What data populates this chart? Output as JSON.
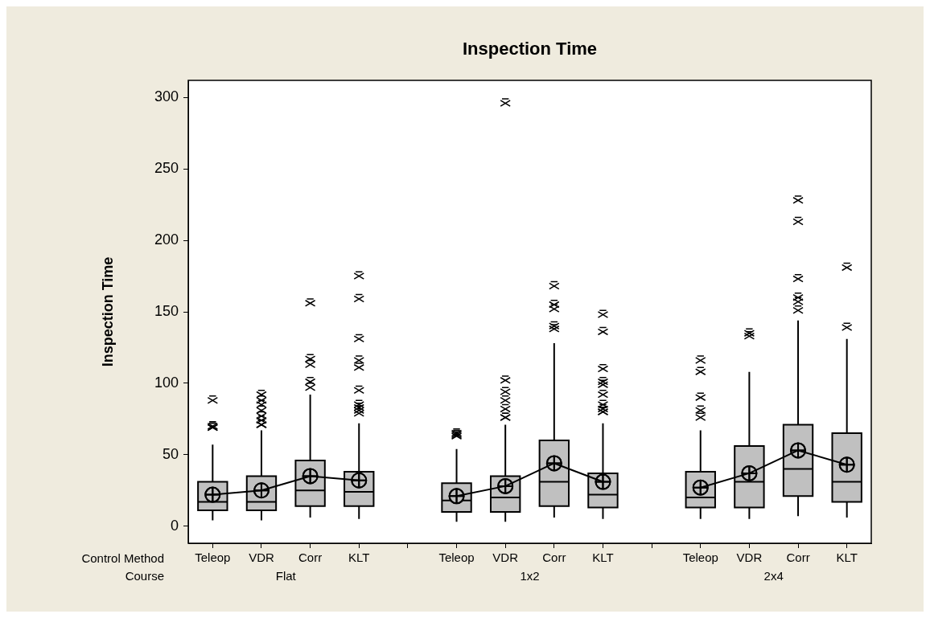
{
  "chart_data": {
    "type": "box",
    "title": "Inspection Time",
    "ylabel": "Inspection Time",
    "categories": [
      "Teleop",
      "VDR",
      "Corr",
      "KLT",
      null,
      "Teleop",
      "VDR",
      "Corr",
      "KLT",
      null,
      "Teleop",
      "VDR",
      "Corr",
      "KLT"
    ],
    "color": "#c0c0c0",
    "ylim": [
      -12,
      312
    ],
    "yticks": [
      0,
      50,
      100,
      150,
      200,
      250,
      300
    ],
    "grid": false,
    "legend": false,
    "boxes": [
      {
        "low": 4,
        "q1": 11,
        "median": 17,
        "q3": 31,
        "high": 57,
        "mean": 22,
        "outliers": [
          69,
          69,
          70,
          88
        ]
      },
      {
        "low": 4,
        "q1": 11,
        "median": 17,
        "q3": 35,
        "high": 67,
        "mean": 25,
        "outliers": [
          71,
          71,
          71,
          74,
          77,
          81,
          85,
          88,
          92
        ]
      },
      {
        "low": 6,
        "q1": 14,
        "median": 25,
        "q3": 46,
        "high": 92,
        "mean": 35,
        "outliers": [
          97,
          101,
          113,
          117,
          156
        ]
      },
      {
        "low": 5,
        "q1": 14,
        "median": 24,
        "q3": 38,
        "high": 72,
        "mean": 32,
        "outliers": [
          79,
          81,
          83,
          85,
          95,
          111,
          116,
          131,
          159,
          175
        ]
      },
      null,
      {
        "low": 3,
        "q1": 10,
        "median": 18,
        "q3": 30,
        "high": 54,
        "mean": 21,
        "outliers": [
          63,
          64,
          65
        ]
      },
      {
        "low": 3,
        "q1": 10,
        "median": 20,
        "q3": 35,
        "high": 71,
        "mean": 28,
        "outliers": [
          76,
          76,
          82,
          88,
          94,
          102,
          296
        ]
      },
      {
        "low": 6,
        "q1": 14,
        "median": 31,
        "q3": 60,
        "high": 128,
        "mean": 44,
        "outliers": [
          138,
          140,
          152,
          155,
          168
        ]
      },
      {
        "low": 5,
        "q1": 13,
        "median": 22,
        "q3": 37,
        "high": 72,
        "mean": 31,
        "outliers": [
          80,
          80,
          82,
          85,
          92,
          99,
          101,
          110,
          136,
          148
        ]
      },
      null,
      {
        "low": 5,
        "q1": 13,
        "median": 20,
        "q3": 38,
        "high": 67,
        "mean": 27,
        "outliers": [
          76,
          81,
          90,
          108,
          116
        ]
      },
      {
        "low": 5,
        "q1": 13,
        "median": 31,
        "q3": 56,
        "high": 108,
        "mean": 37,
        "outliers": [
          133,
          135
        ]
      },
      {
        "low": 7,
        "q1": 21,
        "median": 40,
        "q3": 71,
        "high": 144,
        "mean": 53,
        "outliers": [
          151,
          157,
          160,
          173,
          213,
          228
        ]
      },
      {
        "low": 6,
        "q1": 17,
        "median": 31,
        "q3": 65,
        "high": 131,
        "mean": 43,
        "outliers": [
          139,
          181
        ]
      }
    ],
    "series": [
      {
        "type": "line",
        "color": "#000000",
        "values": [
          22,
          25,
          35,
          32,
          null,
          21,
          28,
          44,
          31,
          null,
          27,
          37,
          53,
          43
        ]
      }
    ],
    "annotations": [
      "Control Method",
      "Course",
      "Flat",
      "1x2",
      "2x4"
    ]
  }
}
